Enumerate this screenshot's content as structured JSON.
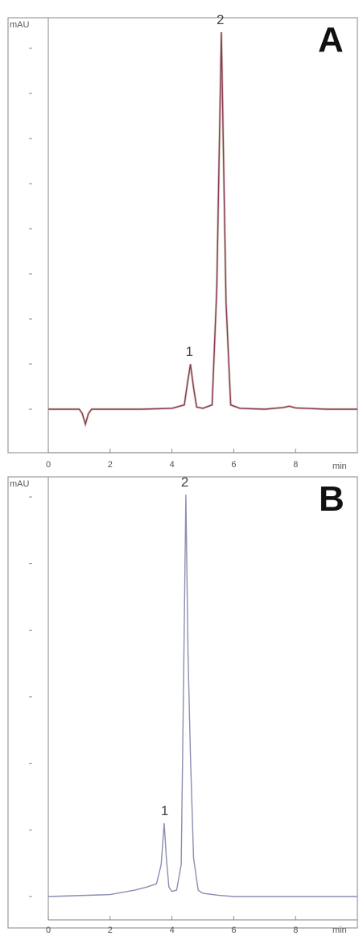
{
  "chart_data": [
    {
      "panel": "A",
      "type": "line",
      "ylabel": "mAU",
      "xlabel": "min",
      "xlim": [
        0,
        10
      ],
      "x_ticks": [
        0,
        2,
        4,
        6,
        8
      ],
      "x_tick_labels": [
        "0",
        "2",
        "4",
        "6",
        "8"
      ],
      "y_tick_count": 9,
      "peak_labels": [
        {
          "label": "1",
          "x": 4.6
        },
        {
          "label": "2",
          "x": 5.6
        }
      ],
      "series": [
        {
          "x": [
            0,
            1.0,
            1.1,
            1.2,
            1.3,
            1.4,
            2.0,
            3.0,
            4.0,
            4.4,
            4.5,
            4.6,
            4.7,
            4.8,
            5.0,
            5.3,
            5.45,
            5.6,
            5.75,
            5.9,
            6.2,
            7.0,
            7.6,
            7.8,
            8.0,
            9.0,
            10.0
          ],
          "y": [
            0,
            0,
            -0.1,
            -0.35,
            -0.1,
            0,
            0,
            0,
            0.02,
            0.1,
            0.6,
            1.05,
            0.5,
            0.05,
            0.02,
            0.1,
            2.8,
            8.8,
            2.5,
            0.1,
            0.02,
            0.0,
            0.04,
            0.07,
            0.03,
            0.0,
            0.0
          ]
        }
      ]
    },
    {
      "panel": "B",
      "type": "line",
      "ylabel": "mAU",
      "xlabel": "min",
      "xlim": [
        0,
        10
      ],
      "x_ticks": [
        0,
        2,
        4,
        6,
        8
      ],
      "x_tick_labels": [
        "0",
        "2",
        "4",
        "6",
        "8"
      ],
      "y_tick_count": 7,
      "peak_labels": [
        {
          "label": "1",
          "x": 3.8
        },
        {
          "label": "2",
          "x": 4.45
        }
      ],
      "series": [
        {
          "x": [
            0,
            2.0,
            2.8,
            3.2,
            3.5,
            3.65,
            3.75,
            3.82,
            3.9,
            4.0,
            4.15,
            4.3,
            4.38,
            4.45,
            4.52,
            4.6,
            4.7,
            4.85,
            5.0,
            5.5,
            6.0,
            8.0,
            10.0
          ],
          "y": [
            0,
            0.03,
            0.1,
            0.15,
            0.2,
            0.5,
            1.15,
            0.6,
            0.15,
            0.08,
            0.1,
            0.5,
            3.5,
            6.3,
            3.8,
            2.2,
            0.6,
            0.1,
            0.05,
            0.02,
            0.0,
            0.0,
            0.0
          ]
        }
      ]
    }
  ],
  "panels": {
    "A": {
      "letter": "A",
      "ylabel": "mAU",
      "xunit": "min",
      "peak1": "1",
      "peak2": "2",
      "ticks": [
        "0",
        "2",
        "4",
        "6",
        "8"
      ]
    },
    "B": {
      "letter": "B",
      "ylabel": "mAU",
      "xunit": "min",
      "peak1": "1",
      "peak2": "2",
      "ticks": [
        "0",
        "2",
        "4",
        "6",
        "8"
      ]
    }
  }
}
